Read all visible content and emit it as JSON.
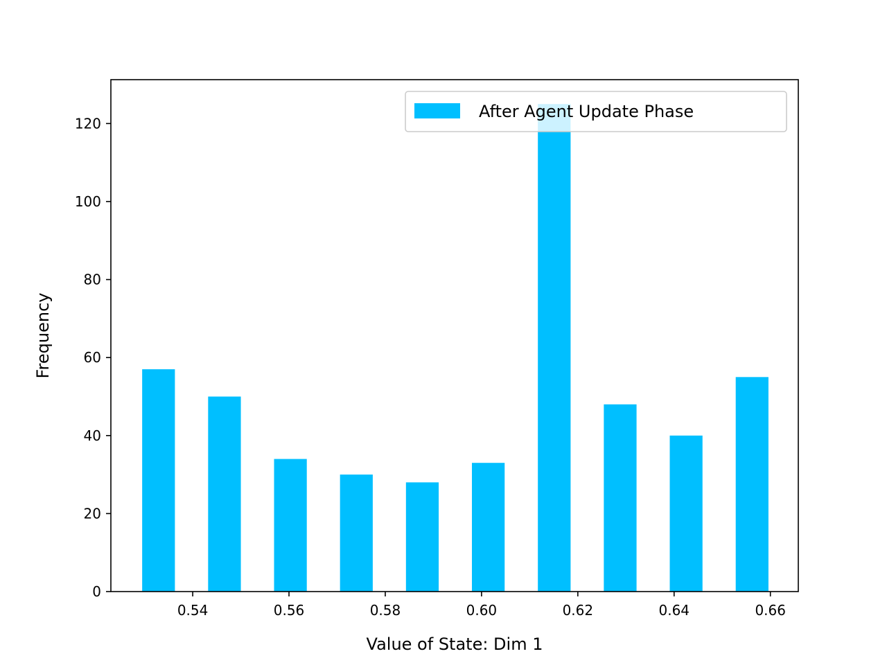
{
  "chart_data": {
    "type": "bar",
    "title": "",
    "xlabel": "Value of State: Dim 1",
    "ylabel": "Frequency",
    "bin_left_edges": [
      0.5295,
      0.5432,
      0.5569,
      0.5706,
      0.5843,
      0.598,
      0.6117,
      0.6254,
      0.6391,
      0.6528
    ],
    "bin_width": 0.0068,
    "values": [
      57,
      50,
      34,
      30,
      28,
      33,
      125,
      48,
      40,
      55
    ],
    "xlim": [
      0.523,
      0.6658
    ],
    "ylim": [
      0,
      131.25
    ],
    "xticks": [
      0.54,
      0.56,
      0.58,
      0.6,
      0.62,
      0.64,
      0.66
    ],
    "xtick_labels": [
      "0.54",
      "0.56",
      "0.58",
      "0.60",
      "0.62",
      "0.64",
      "0.66"
    ],
    "yticks": [
      0,
      20,
      40,
      60,
      80,
      100,
      120
    ],
    "ytick_labels": [
      "0",
      "20",
      "40",
      "60",
      "80",
      "100",
      "120"
    ],
    "series": [
      {
        "name": "After Agent Update Phase",
        "color": "#00bfff"
      }
    ],
    "legend": {
      "position": "upper right"
    },
    "grid": false
  }
}
